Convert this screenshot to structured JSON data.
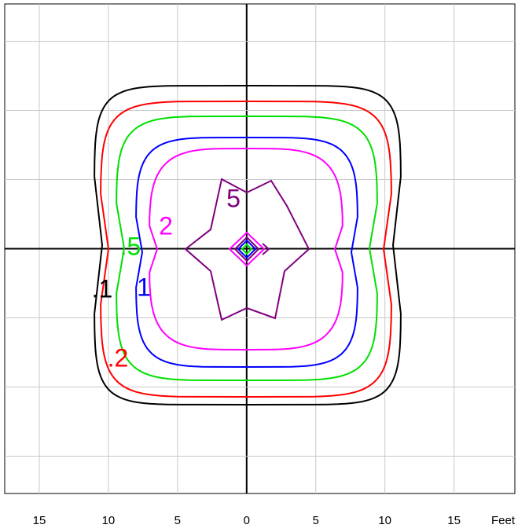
{
  "chart_data": {
    "type": "contour",
    "x_label": "Feet",
    "xlim": [
      -17.5,
      19.4
    ],
    "ylim": [
      -17.7,
      17.7
    ],
    "xticks": [
      {
        "value": -15,
        "label": "15"
      },
      {
        "value": -10,
        "label": "10"
      },
      {
        "value": -5,
        "label": "5"
      },
      0,
      5,
      {
        "value": 10,
        "label": "10"
      },
      {
        "value": 15,
        "label": "15"
      }
    ],
    "yticks": [
      -15,
      -10,
      -5,
      0,
      5,
      10,
      15
    ],
    "grid": true,
    "series": [
      {
        "name": "0.1",
        "color": "#000000",
        "values": [
          0.1
        ],
        "value_labels": [
          ".1"
        ]
      },
      {
        "name": "0.2",
        "color": "#ff0000",
        "values": [
          0.2
        ],
        "value_labels": [
          ".2"
        ]
      },
      {
        "name": "0.5",
        "color": "#00e000",
        "values": [
          0.5
        ],
        "value_labels": [
          ".5"
        ]
      },
      {
        "name": "1",
        "color": "#0000ff",
        "values": [
          1
        ],
        "value_labels": [
          "1"
        ]
      },
      {
        "name": "2",
        "color": "#ff00ff",
        "values": [
          2
        ],
        "value_labels": [
          "2"
        ]
      },
      {
        "name": "5",
        "color": "#800080",
        "values": [
          5
        ],
        "value_labels": [
          "5"
        ]
      }
    ]
  }
}
